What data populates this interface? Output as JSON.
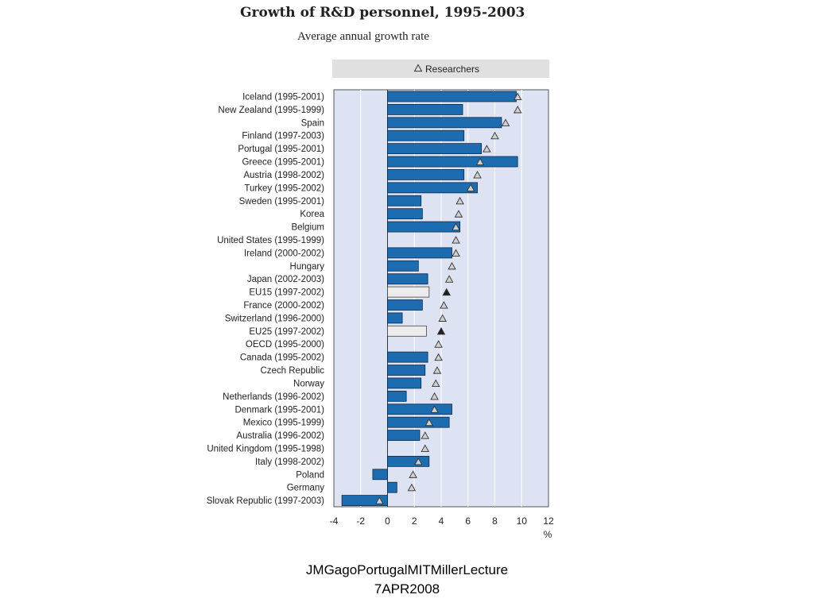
{
  "chart_data": {
    "type": "bar",
    "title": "Growth of R&D personnel, 1995-2003",
    "subtitle": "Average annual growth rate",
    "xlabel": "%",
    "xlim": [
      -4,
      12
    ],
    "xticks": [
      -4,
      -2,
      0,
      2,
      4,
      6,
      8,
      10,
      12
    ],
    "legend": {
      "position": "top",
      "label": "Researchers"
    },
    "categories": [
      "Iceland (1995-2001)",
      "New Zealand (1995-1999)",
      "Spain",
      "Finland (1997-2003)",
      "Portugal (1995-2001)",
      "Greece (1995-2001)",
      "Austria (1998-2002)",
      "Turkey (1995-2002)",
      "Sweden (1995-2001)",
      "Korea",
      "Belgium",
      "United States (1995-1999)",
      "Ireland (2000-2002)",
      "Hungary",
      "Japan (2002-2003)",
      "EU15 (1997-2002)",
      "France (2000-2002)",
      "Switzerland (1996-2000)",
      "EU25 (1997-2002)",
      "OECD (1995-2000)",
      "Canada (1995-2002)",
      "Czech Republic",
      "Norway",
      "Netherlands (1996-2002)",
      "Denmark (1995-2001)",
      "Mexico (1995-1999)",
      "Australia (1996-2002)",
      "United Kingdom (1995-1998)",
      "Italy (1998-2002)",
      "Poland",
      "Germany",
      "Slovak Republic (1997-2003)"
    ],
    "series": [
      {
        "values": [
          9.6,
          5.6,
          8.5,
          5.7,
          7.0,
          9.7,
          5.7,
          6.7,
          2.5,
          2.6,
          5.4,
          null,
          4.8,
          2.3,
          3.0,
          3.1,
          2.6,
          1.1,
          2.9,
          null,
          3.0,
          2.8,
          2.5,
          1.4,
          4.8,
          4.6,
          2.4,
          null,
          3.1,
          -1.1,
          0.7,
          -3.4
        ]
      },
      {
        "name": "Researchers",
        "values": [
          9.7,
          9.7,
          8.8,
          8.0,
          7.4,
          6.9,
          6.7,
          6.2,
          5.4,
          5.3,
          5.1,
          5.1,
          5.1,
          4.8,
          4.6,
          4.4,
          4.2,
          4.1,
          4.0,
          3.8,
          3.8,
          3.7,
          3.6,
          3.5,
          3.5,
          3.1,
          2.8,
          2.8,
          2.3,
          1.9,
          1.8,
          -0.6
        ]
      }
    ],
    "aggregate_categories": [
      "EU15 (1997-2002)",
      "EU25 (1997-2002)"
    ],
    "colors": {
      "bar": "#1e6cb0",
      "bar_stroke": "#0d2a4a",
      "aggregate_bar": "#ececec",
      "plot_background": "#dde3f2",
      "legend_background": "#e0e0e0",
      "marker_fill": "#cfcfcf",
      "aggregate_marker_fill": "#222222"
    },
    "grid": true
  },
  "footer": {
    "line1": "JMGagoPortugalMITMillerLecture",
    "line2": "7APR2008"
  }
}
